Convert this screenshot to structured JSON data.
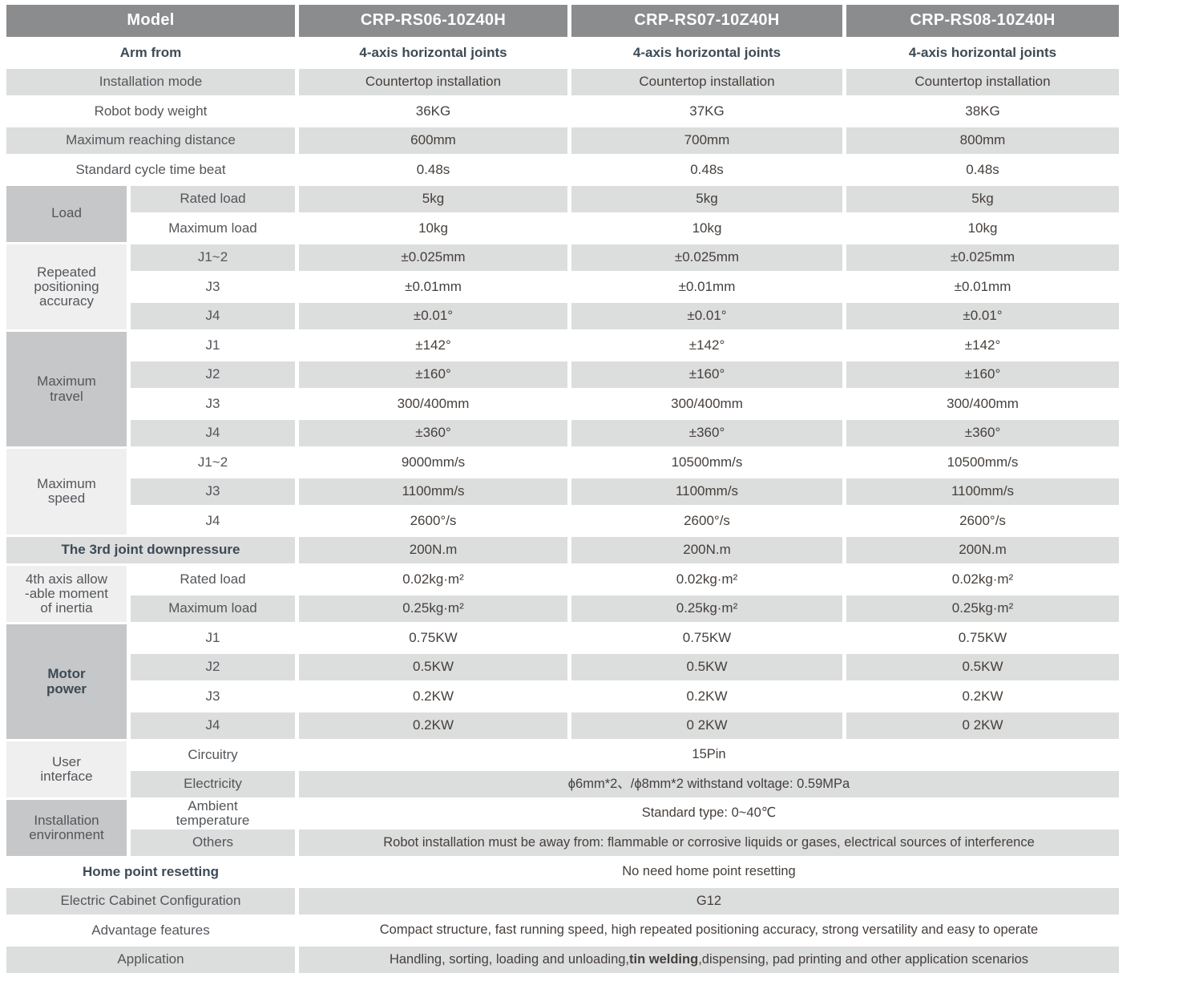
{
  "colors": {
    "header_bg": "#8a8c8d",
    "header_text": "#ffffff",
    "row_gray": "#dcdddd",
    "group_dark": "#c5c7c8",
    "group_light": "#efefef",
    "text_label": "#53565a",
    "text_value": "#46403c",
    "text_emphasis": "#3d4a55"
  },
  "table": {
    "header": {
      "model_label": "Model",
      "models": [
        "CRP-RS06-10Z40H",
        "CRP-RS07-10Z40H",
        "CRP-RS08-10Z40H"
      ]
    },
    "rows": [
      {
        "label": "Arm from",
        "bold": true,
        "values": [
          "4-axis horizontal joints",
          "4-axis horizontal joints",
          "4-axis horizontal joints"
        ],
        "values_bold": true,
        "shade": "white"
      },
      {
        "label": "Installation mode",
        "values": [
          "Countertop installation",
          "Countertop installation",
          "Countertop installation"
        ],
        "shade": "gray"
      },
      {
        "label": "Robot body weight",
        "values": [
          "36KG",
          "37KG",
          "38KG"
        ],
        "shade": "white"
      },
      {
        "label": "Maximum reaching distance",
        "values": [
          "600mm",
          "700mm",
          "800mm"
        ],
        "shade": "gray"
      },
      {
        "label": "Standard cycle time beat",
        "values": [
          "0.48s",
          "0.48s",
          "0.48s"
        ],
        "shade": "white"
      },
      {
        "group": {
          "label": "Load",
          "span": 2,
          "tone": "dark"
        },
        "sublabel": "Rated load",
        "values": [
          "5kg",
          "5kg",
          "5kg"
        ],
        "shade": "gray"
      },
      {
        "sublabel": "Maximum load",
        "values": [
          "10kg",
          "10kg",
          "10kg"
        ],
        "shade": "white"
      },
      {
        "group": {
          "label": "Repeated\npositioning\naccuracy",
          "span": 3,
          "tone": "light"
        },
        "sublabel": "J1~2",
        "values": [
          "±0.025mm",
          "±0.025mm",
          "±0.025mm"
        ],
        "shade": "gray"
      },
      {
        "sublabel": "J3",
        "values": [
          "±0.01mm",
          "±0.01mm",
          "±0.01mm"
        ],
        "shade": "white"
      },
      {
        "sublabel": "J4",
        "values": [
          "±0.01°",
          "±0.01°",
          "±0.01°"
        ],
        "shade": "gray"
      },
      {
        "group": {
          "label": "Maximum\ntravel",
          "span": 4,
          "tone": "dark"
        },
        "sublabel": "J1",
        "values": [
          "±142°",
          "±142°",
          "±142°"
        ],
        "shade": "white"
      },
      {
        "sublabel": "J2",
        "values": [
          "±160°",
          "±160°",
          "±160°"
        ],
        "shade": "gray"
      },
      {
        "sublabel": "J3",
        "values": [
          "300/400mm",
          "300/400mm",
          "300/400mm"
        ],
        "shade": "white"
      },
      {
        "sublabel": "J4",
        "values": [
          "±360°",
          "±360°",
          "±360°"
        ],
        "shade": "gray"
      },
      {
        "group": {
          "label": "Maximum\nspeed",
          "span": 3,
          "tone": "light"
        },
        "sublabel": "J1~2",
        "values": [
          "9000mm/s",
          "10500mm/s",
          "10500mm/s"
        ],
        "shade": "white"
      },
      {
        "sublabel": "J3",
        "values": [
          "1100mm/s",
          "1100mm/s",
          "1100mm/s"
        ],
        "shade": "gray"
      },
      {
        "sublabel": "J4",
        "values": [
          "2600°/s",
          "2600°/s",
          "2600°/s"
        ],
        "shade": "white"
      },
      {
        "label": "The 3rd joint downpressure",
        "bold": true,
        "values": [
          "200N.m",
          "200N.m",
          "200N.m"
        ],
        "shade": "gray"
      },
      {
        "group": {
          "label": "4th axis allow\n-able moment\nof inertia",
          "span": 2,
          "tone": "light"
        },
        "sublabel": "Rated load",
        "values": [
          "0.02kg·m²",
          "0.02kg·m²",
          "0.02kg·m²"
        ],
        "shade": "white"
      },
      {
        "sublabel": "Maximum load",
        "values": [
          "0.25kg·m²",
          "0.25kg·m²",
          "0.25kg·m²"
        ],
        "shade": "gray"
      },
      {
        "group": {
          "label": "Motor\npower",
          "span": 4,
          "tone": "dark",
          "bold": true
        },
        "sublabel": "J1",
        "values": [
          "0.75KW",
          "0.75KW",
          "0.75KW"
        ],
        "shade": "white"
      },
      {
        "sublabel": "J2",
        "values": [
          "0.5KW",
          "0.5KW",
          "0.5KW"
        ],
        "shade": "gray"
      },
      {
        "sublabel": "J3",
        "values": [
          "0.2KW",
          "0.2KW",
          "0.2KW"
        ],
        "shade": "white"
      },
      {
        "sublabel": "J4",
        "values": [
          "0.2KW",
          "0 2KW",
          "0 2KW"
        ],
        "shade": "gray"
      },
      {
        "group": {
          "label": "User\ninterface",
          "span": 2,
          "tone": "light"
        },
        "sublabel": "Circuitry",
        "span_value": "15Pin",
        "shade": "white"
      },
      {
        "sublabel": "Electricity",
        "span_value": "ϕ6mm*2、/ϕ8mm*2  withstand voltage: 0.59MPa",
        "shade": "gray"
      },
      {
        "group": {
          "label": "Installation\nenvironment",
          "span": 2,
          "tone": "dark"
        },
        "sublabel": "Ambient\ntemperature",
        "span_value": "Standard type:  0~40℃",
        "shade": "white"
      },
      {
        "sublabel": "Others",
        "span_value": "Robot installation must be away from: flammable or corrosive liquids or gases, electrical sources of interference",
        "shade": "gray"
      },
      {
        "label": "Home point resetting",
        "bold": true,
        "span_value": "No need home point resetting",
        "shade": "white"
      },
      {
        "label": "Electric Cabinet Configuration",
        "span_value": "G12",
        "shade": "gray"
      },
      {
        "label": "Advantage features",
        "span_value": "Compact structure, fast running speed, high repeated positioning accuracy, strong versatility and easy to operate",
        "shade": "white"
      },
      {
        "label": "Application",
        "parts": {
          "pre": "Handling, sorting, loading and unloading,",
          "bold": "tin welding",
          "post": ",dispensing, pad printing and other application scenarios"
        },
        "shade": "gray"
      }
    ]
  }
}
